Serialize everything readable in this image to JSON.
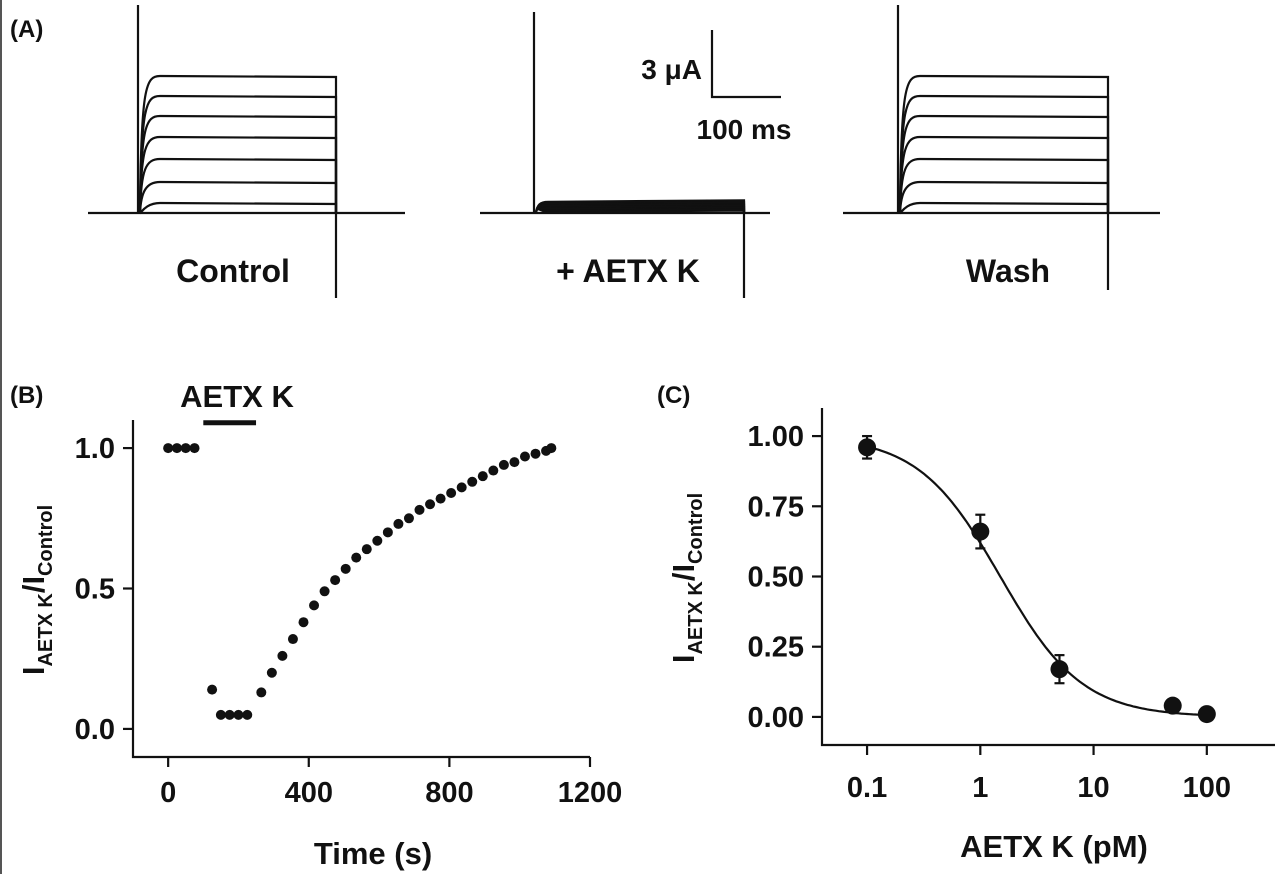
{
  "panel_a": {
    "letter": "(A)",
    "conditions": [
      "Control",
      "+ AETX K",
      "Wash"
    ],
    "scale_bar": {
      "current": "3 μA",
      "time": "100 ms"
    }
  },
  "panel_b": {
    "letter": "(B)",
    "bar_label": "AETX K"
  },
  "panel_c": {
    "letter": "(C)"
  },
  "chart_data": [
    {
      "panel": "B",
      "type": "scatter",
      "xlabel": "Time (s)",
      "ylabel_main": "I",
      "ylabel_sub1": "AETX K",
      "ylabel_mid": "/I",
      "ylabel_sub2": "Control",
      "xlim": [
        -100,
        1200
      ],
      "ylim": [
        -0.1,
        1.1
      ],
      "xticks": [
        0,
        400,
        800,
        1200
      ],
      "yticks": [
        0.0,
        0.5,
        1.0
      ],
      "ytick_labels": [
        "0.0",
        "0.5",
        "1.0"
      ],
      "application_bar": {
        "label": "AETX K",
        "start": 100,
        "end": 250,
        "y": 1.09
      },
      "points": [
        [
          0,
          1.0
        ],
        [
          25,
          1.0
        ],
        [
          50,
          1.0
        ],
        [
          75,
          1.0
        ],
        [
          125,
          0.14
        ],
        [
          150,
          0.05
        ],
        [
          175,
          0.05
        ],
        [
          200,
          0.05
        ],
        [
          225,
          0.05
        ],
        [
          265,
          0.13
        ],
        [
          295,
          0.2
        ],
        [
          325,
          0.26
        ],
        [
          355,
          0.32
        ],
        [
          385,
          0.38
        ],
        [
          415,
          0.44
        ],
        [
          445,
          0.49
        ],
        [
          475,
          0.53
        ],
        [
          505,
          0.57
        ],
        [
          535,
          0.61
        ],
        [
          565,
          0.64
        ],
        [
          595,
          0.67
        ],
        [
          625,
          0.7
        ],
        [
          655,
          0.73
        ],
        [
          685,
          0.75
        ],
        [
          715,
          0.78
        ],
        [
          745,
          0.8
        ],
        [
          775,
          0.82
        ],
        [
          805,
          0.84
        ],
        [
          835,
          0.86
        ],
        [
          865,
          0.88
        ],
        [
          895,
          0.9
        ],
        [
          925,
          0.92
        ],
        [
          955,
          0.94
        ],
        [
          985,
          0.95
        ],
        [
          1015,
          0.97
        ],
        [
          1045,
          0.98
        ],
        [
          1075,
          0.99
        ],
        [
          1090,
          1.0
        ]
      ]
    },
    {
      "panel": "C",
      "type": "scatter",
      "xscale": "log",
      "xlabel": "AETX K (pM)",
      "ylabel_main": "I",
      "ylabel_sub1": "AETX K",
      "ylabel_mid": "/I",
      "ylabel_sub2": "Control",
      "xlim": [
        0.04,
        400
      ],
      "ylim": [
        -0.1,
        1.1
      ],
      "xticks": [
        0.1,
        1,
        10,
        100
      ],
      "xtick_labels": [
        "0.1",
        "1",
        "10",
        "100"
      ],
      "yticks": [
        0.0,
        0.25,
        0.5,
        0.75,
        1.0
      ],
      "ytick_labels": [
        "0.00",
        "0.25",
        "0.50",
        "0.75",
        "1.00"
      ],
      "points": [
        {
          "x": 0.1,
          "y": 0.96,
          "err": 0.04
        },
        {
          "x": 1,
          "y": 0.66,
          "err": 0.06
        },
        {
          "x": 5,
          "y": 0.17,
          "err": 0.05
        },
        {
          "x": 50,
          "y": 0.04,
          "err": 0.02
        },
        {
          "x": 100,
          "y": 0.01,
          "err": 0.02
        }
      ],
      "fit": {
        "model": "Hill",
        "ic50_pM": 1.5,
        "hill_coefficient": 1.2
      }
    }
  ]
}
